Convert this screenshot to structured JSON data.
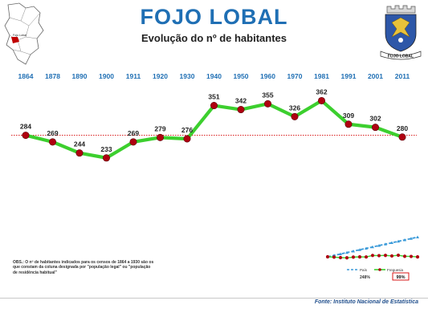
{
  "header": {
    "title": "FOJO LOBAL",
    "subtitle": "Evolução do nº de habitantes"
  },
  "map_thumb": {
    "label": "Fojo Lobal"
  },
  "crest": {
    "caption": "FOJO LOBAL"
  },
  "chart_data": {
    "type": "line",
    "categories": [
      "1864",
      "1878",
      "1890",
      "1900",
      "1911",
      "1920",
      "1930",
      "1940",
      "1950",
      "1960",
      "1970",
      "1981",
      "1991",
      "2001",
      "2011"
    ],
    "series": [
      {
        "values": [
          284,
          269,
          244,
          233,
          269,
          279,
          276,
          351,
          342,
          355,
          326,
          362,
          309,
          302,
          280
        ]
      }
    ],
    "reference_line": 284,
    "ylim": [
      200,
      390
    ],
    "colors": {
      "line": "#3ccf2e",
      "marker": "#b00010",
      "reference": "#d40000",
      "years": "#1f6fb4"
    }
  },
  "footnote": "OBS.: O nº de habitantes indicados para os censos de 1864 a 1930 são os que constam da coluna designada por \"população legal\" ou \"população de residência habitual\"",
  "mini_legend": {
    "pais_label": "País",
    "freguesia_label": "Freguesia",
    "pais_pct": "248%",
    "freguesia_pct": "99%"
  },
  "source": "Fonte: Instituto Nacional de Estatística"
}
